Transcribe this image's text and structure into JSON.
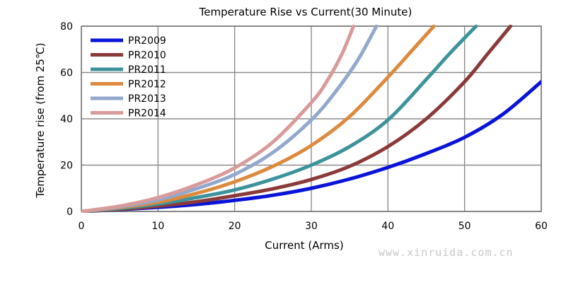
{
  "chart_data": {
    "type": "line",
    "title": "Temperature Rise vs Current(30 Minute)",
    "xlabel": "Current (Arms)",
    "ylabel": "Temperature rise (from 25℃)",
    "xlim": [
      0,
      60
    ],
    "ylim": [
      0,
      80
    ],
    "xticks": [
      "0",
      "10",
      "20",
      "30",
      "40",
      "50",
      "60"
    ],
    "yticks": [
      "0",
      "20",
      "40",
      "60",
      "80"
    ],
    "grid": true,
    "legend_position": "top-left",
    "series": [
      {
        "name": "PR2009",
        "color": "#0a14d8",
        "x": [
          0,
          5,
          10,
          15,
          20,
          25,
          30,
          35,
          40,
          45,
          50,
          55,
          60
        ],
        "y": [
          0,
          0.8,
          1.8,
          3.0,
          4.8,
          7.0,
          10.0,
          14.0,
          19.0,
          25.0,
          32.0,
          42.0,
          56.0
        ]
      },
      {
        "name": "PR2010",
        "color": "#8b3a3a",
        "x": [
          0,
          5,
          10,
          15,
          20,
          25,
          30,
          35,
          40,
          45,
          50,
          53,
          56
        ],
        "y": [
          0,
          0.9,
          2.3,
          4.2,
          6.8,
          9.8,
          13.8,
          19.5,
          28.0,
          40.0,
          56.0,
          68.0,
          80.0
        ]
      },
      {
        "name": "PR2011",
        "color": "#3d939b",
        "x": [
          0,
          5,
          10,
          15,
          20,
          25,
          30,
          35,
          40,
          45,
          48,
          51.5
        ],
        "y": [
          0,
          1.3,
          3.2,
          6.0,
          9.3,
          14.0,
          20.0,
          28.0,
          39.5,
          57.0,
          68.0,
          80.0
        ]
      },
      {
        "name": "PR2012",
        "color": "#dd8a3e",
        "x": [
          0,
          5,
          10,
          15,
          20,
          25,
          30,
          35,
          40,
          43,
          46
        ],
        "y": [
          0,
          1.7,
          4.0,
          7.8,
          12.8,
          19.5,
          28.5,
          41.0,
          58.0,
          69.0,
          80.0
        ]
      },
      {
        "name": "PR2013",
        "color": "#92a8cc",
        "x": [
          0,
          5,
          10,
          15,
          20,
          25,
          30,
          33,
          36,
          38.5
        ],
        "y": [
          0,
          2.0,
          5.0,
          9.8,
          16.0,
          25.5,
          39.5,
          51.0,
          65.0,
          80.0
        ]
      },
      {
        "name": "PR2014",
        "color": "#d99a9a",
        "x": [
          0,
          5,
          10,
          15,
          20,
          25,
          30,
          32,
          34,
          35.5
        ],
        "y": [
          0,
          2.3,
          6.0,
          11.5,
          18.8,
          30.0,
          47.0,
          56.0,
          68.0,
          80.0
        ]
      }
    ]
  },
  "watermark": "www.xinruida.com.cn"
}
